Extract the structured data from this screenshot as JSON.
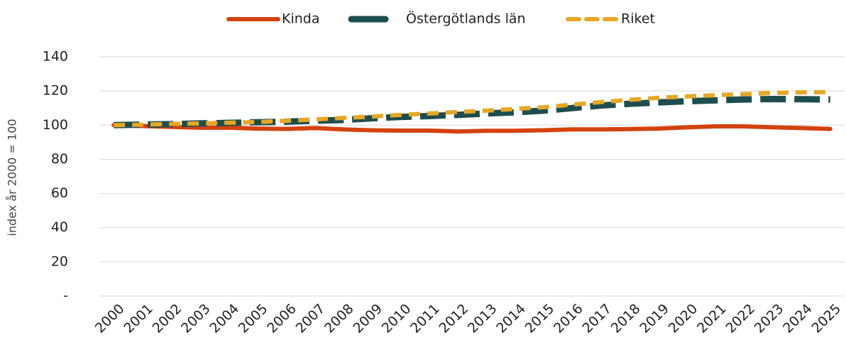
{
  "chart_data": {
    "type": "line",
    "y_label": "index år 2000 = 100",
    "categories": [
      "2000",
      "2001",
      "2002",
      "2003",
      "2004",
      "2005",
      "2006",
      "2007",
      "2008",
      "2009",
      "2010",
      "2011",
      "2012",
      "2013",
      "2014",
      "2015",
      "2016",
      "2017",
      "2018",
      "2019",
      "2020",
      "2021",
      "2022",
      "2023",
      "2024",
      "2025"
    ],
    "series": [
      {
        "name": "Kinda",
        "color": "#d4420f",
        "values": [
          100,
          99.5,
          99,
          98.5,
          98.5,
          98,
          97.8,
          98.3,
          97.5,
          97,
          96.8,
          96.8,
          96.3,
          96.7,
          96.7,
          97,
          97.5,
          97.5,
          97.7,
          98,
          98.7,
          99.3,
          99.3,
          98.7,
          98.3,
          97.8
        ]
      },
      {
        "name": "Östergötlands län",
        "color": "#1e4d4f",
        "values": [
          100,
          100.3,
          100.6,
          101,
          101.3,
          101.7,
          102,
          102.6,
          103,
          104,
          104.8,
          105.3,
          106,
          106.8,
          107.5,
          108.5,
          110,
          111.5,
          112.5,
          113.3,
          114,
          114.5,
          115,
          115.3,
          115.2,
          115
        ]
      },
      {
        "name": "Riket",
        "color": "#e6a824",
        "values": [
          100,
          100.3,
          100.7,
          101,
          101.4,
          101.8,
          102.5,
          103.3,
          104.2,
          105,
          106,
          106.8,
          107.7,
          108.5,
          109.5,
          110.5,
          112,
          113.5,
          114.8,
          116,
          116.8,
          117.5,
          118.2,
          118.8,
          119.2,
          119.3
        ]
      }
    ],
    "ylim": [
      0,
      140
    ],
    "yticks": [
      {
        "value": 0,
        "label": "-"
      },
      20,
      40,
      60,
      80,
      100,
      120,
      140
    ],
    "grid": true,
    "legend": "top"
  }
}
